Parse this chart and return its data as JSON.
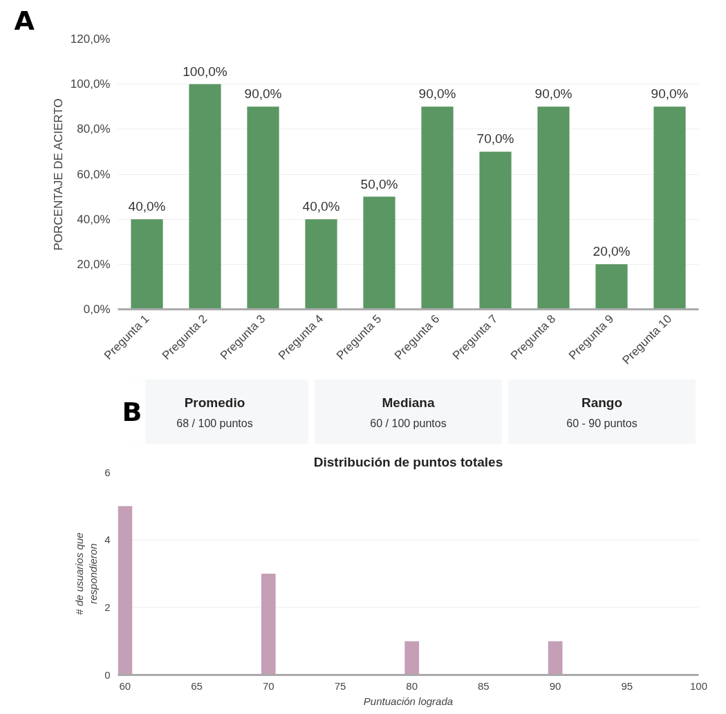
{
  "chart_data": [
    {
      "type": "bar",
      "ylabel": "PORCENTAJE DE ACIERTO",
      "annotations": [
        "A"
      ],
      "categories": [
        "Pregunta 1",
        "Pregunta 2",
        "Pregunta 3",
        "Pregunta 4",
        "Pregunta 5",
        "Pregunta 6",
        "Pregunta 7",
        "Pregunta 8",
        "Pregunta 9",
        "Pregunta 10"
      ],
      "values": [
        40,
        100,
        90,
        40,
        50,
        90,
        70,
        90,
        20,
        90
      ],
      "value_labels": [
        "40,0%",
        "100,0%",
        "90,0%",
        "40,0%",
        "50,0%",
        "90,0%",
        "70,0%",
        "90,0%",
        "20,0%",
        "90,0%"
      ],
      "color": "#5a9763",
      "ylim": [
        0,
        120
      ],
      "yticks": [
        {
          "value": 0,
          "label": "0,0%"
        },
        {
          "value": 20,
          "label": "20,0%"
        },
        {
          "value": 40,
          "label": "40,0%"
        },
        {
          "value": 60,
          "label": "60,0%"
        },
        {
          "value": 80,
          "label": "80,0%"
        },
        {
          "value": 100,
          "label": "100,0%"
        },
        {
          "value": 120,
          "label": "120,0%"
        }
      ],
      "grid": "y"
    },
    {
      "type": "other",
      "categories": [
        "Promedio",
        "Mediana",
        "Rango"
      ],
      "annotations": [
        "68 / 100 puntos",
        "60 / 100 puntos",
        "60 - 90 puntos",
        "B"
      ]
    },
    {
      "type": "bar",
      "title": "Distribución de puntos totales",
      "xlabel": "Puntuación lograda",
      "ylabel": "# de usuarios que respondieron",
      "x": [
        60,
        70,
        80,
        90
      ],
      "values": [
        5,
        3,
        1,
        1
      ],
      "color": "#c49fb6",
      "xlim": [
        59.5,
        100
      ],
      "xticks": [
        60,
        65,
        70,
        75,
        80,
        85,
        90,
        95,
        100
      ],
      "ylim": [
        0,
        6
      ],
      "yticks": [
        0,
        2,
        4,
        6
      ],
      "grid": "y"
    }
  ]
}
